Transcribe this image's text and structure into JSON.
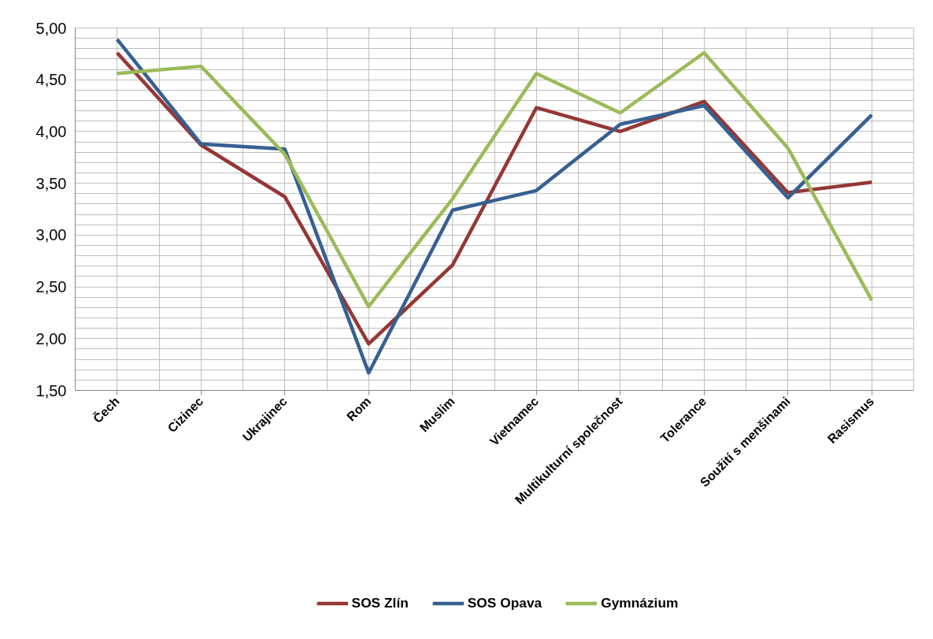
{
  "chart_data": {
    "type": "line",
    "categories": [
      "Čech",
      "Cizinec",
      "Ukrajinec",
      "Rom",
      "Muslim",
      "Vietnamec",
      "Multikulturní společnost",
      "Tolerance",
      "Soužití s menšinami",
      "Rasismus"
    ],
    "series": [
      {
        "name": "SOS Zlín",
        "color": "#953735",
        "values": [
          4.76,
          3.87,
          3.37,
          1.95,
          2.71,
          4.23,
          4.0,
          4.29,
          3.41,
          3.51
        ]
      },
      {
        "name": "SOS Opava",
        "color": "#376092",
        "values": [
          4.89,
          3.88,
          3.83,
          1.67,
          3.24,
          3.43,
          4.07,
          4.25,
          3.36,
          4.16
        ]
      },
      {
        "name": "Gymnázium",
        "color": "#9bbb59",
        "values": [
          4.56,
          4.63,
          3.78,
          2.31,
          3.35,
          4.56,
          4.18,
          4.76,
          3.84,
          2.37
        ]
      }
    ],
    "ylim": [
      1.5,
      5.0
    ],
    "yticks": [
      {
        "value": 1.5,
        "label": "1,50"
      },
      {
        "value": 1.6,
        "label": null
      },
      {
        "value": 1.7,
        "label": null
      },
      {
        "value": 1.8,
        "label": null
      },
      {
        "value": 1.9,
        "label": null
      },
      {
        "value": 2.0,
        "label": "2,00"
      },
      {
        "value": 2.1,
        "label": null
      },
      {
        "value": 2.2,
        "label": null
      },
      {
        "value": 2.3,
        "label": null
      },
      {
        "value": 2.4,
        "label": null
      },
      {
        "value": 2.5,
        "label": "2,50"
      },
      {
        "value": 2.6,
        "label": null
      },
      {
        "value": 2.7,
        "label": null
      },
      {
        "value": 2.8,
        "label": null
      },
      {
        "value": 2.9,
        "label": null
      },
      {
        "value": 3.0,
        "label": "3,00"
      },
      {
        "value": 3.1,
        "label": null
      },
      {
        "value": 3.2,
        "label": null
      },
      {
        "value": 3.3,
        "label": null
      },
      {
        "value": 3.4,
        "label": null
      },
      {
        "value": 3.5,
        "label": "3,50"
      },
      {
        "value": 3.6,
        "label": null
      },
      {
        "value": 3.7,
        "label": null
      },
      {
        "value": 3.8,
        "label": null
      },
      {
        "value": 3.9,
        "label": null
      },
      {
        "value": 4.0,
        "label": "4,00"
      },
      {
        "value": 4.1,
        "label": null
      },
      {
        "value": 4.2,
        "label": null
      },
      {
        "value": 4.3,
        "label": null
      },
      {
        "value": 4.4,
        "label": null
      },
      {
        "value": 4.5,
        "label": "4,50"
      },
      {
        "value": 4.6,
        "label": null
      },
      {
        "value": 4.7,
        "label": null
      },
      {
        "value": 4.8,
        "label": null
      },
      {
        "value": 4.9,
        "label": null
      },
      {
        "value": 5.0,
        "label": "5,00"
      }
    ],
    "grid": true,
    "legend": "bottom",
    "marker": "none",
    "line_style": "solid"
  }
}
